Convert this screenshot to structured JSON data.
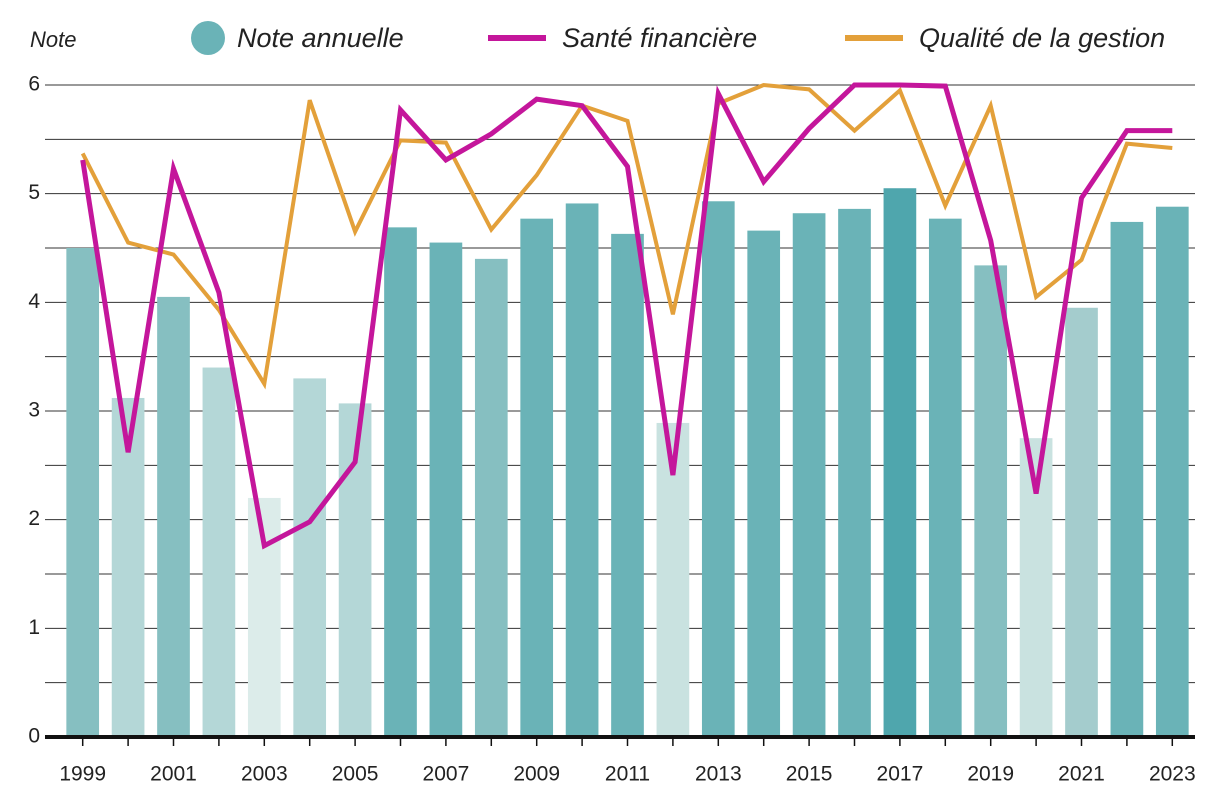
{
  "chart_data": {
    "type": "bar",
    "y_label": "Note",
    "categories": [
      "1999",
      null,
      "2001",
      null,
      "2003",
      null,
      "2005",
      null,
      "2007",
      null,
      "2009",
      null,
      "2011",
      null,
      "2013",
      null,
      "2015",
      null,
      "2017",
      null,
      "2019",
      null,
      "2021",
      null,
      "2023"
    ],
    "series": [
      {
        "name": "Note annuelle",
        "type": "bar",
        "color": "#6ab3b7",
        "colors": [
          "#86bfc1",
          "#b4d7d7",
          "#86bfc1",
          "#b4d7d7",
          "#dcecea",
          "#b4d7d7",
          "#b4d7d7",
          "#6ab3b7",
          "#6ab3b7",
          "#86bfc1",
          "#6ab3b7",
          "#6ab3b7",
          "#6ab3b7",
          "#c9e2e0",
          "#6ab3b7",
          "#6ab3b7",
          "#6ab3b7",
          "#6ab3b7",
          "#4fa6ad",
          "#6ab3b7",
          "#86bfc1",
          "#c9e2e0",
          "#a4cccd",
          "#6ab3b7",
          "#6ab3b7"
        ],
        "values": [
          4.5,
          3.12,
          4.05,
          3.4,
          2.2,
          3.3,
          3.07,
          4.69,
          4.55,
          4.4,
          4.77,
          4.91,
          4.63,
          2.89,
          4.93,
          4.66,
          4.82,
          4.86,
          5.05,
          4.77,
          4.34,
          2.75,
          3.95,
          4.74,
          4.88
        ]
      },
      {
        "name": "Santé financière",
        "type": "line",
        "color": "#c4169b",
        "values": [
          5.31,
          2.62,
          5.23,
          4.09,
          1.76,
          1.98,
          2.53,
          5.77,
          5.31,
          5.55,
          5.87,
          5.81,
          5.25,
          2.41,
          5.92,
          5.11,
          5.6,
          6.0,
          6.0,
          5.99,
          4.57,
          2.24,
          4.96,
          5.58,
          5.58
        ]
      },
      {
        "name": "Qualité de la gestion",
        "type": "line",
        "color": "#e3a03a",
        "values": [
          5.37,
          4.55,
          4.44,
          3.93,
          3.25,
          5.86,
          4.65,
          5.49,
          5.47,
          4.67,
          5.17,
          5.81,
          5.67,
          3.89,
          5.83,
          6.0,
          5.96,
          5.58,
          5.95,
          4.89,
          5.81,
          4.05,
          4.39,
          5.46,
          5.42
        ]
      }
    ],
    "ylim": [
      0,
      6
    ],
    "yticks": [
      0,
      1,
      2,
      3,
      4,
      5,
      6
    ],
    "minor_yticks": [
      0.5,
      1.5,
      2.5,
      3.5,
      4.5,
      5.5
    ],
    "grid": true
  }
}
